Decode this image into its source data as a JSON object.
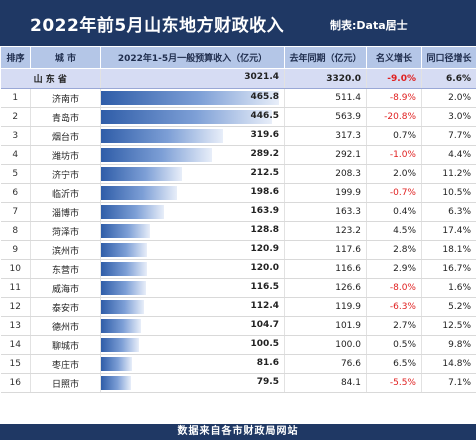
{
  "title": "2022年前5月山东地方财政收入",
  "maker": "制表:Data居士",
  "footer": "数据来自各市财政局网站",
  "headers": {
    "rank": "排序",
    "city": "城 市",
    "revenue": "2022年1-5月一般预算收入（亿元）",
    "last_year": "去年同期（亿元）",
    "nominal_growth": "名义增长",
    "comparable_growth": "同口径增长"
  },
  "total": {
    "name": "山 东 省",
    "revenue": "3021.4",
    "last_year": "3320.0",
    "nominal_growth": "-9.0%",
    "comparable_growth": "6.6%"
  },
  "chart_data": {
    "type": "table",
    "columns": [
      "排序",
      "城 市",
      "2022年1-5月一般预算收入（亿元）",
      "去年同期（亿元）",
      "名义增长",
      "同口径增长"
    ],
    "rows": [
      {
        "rank": "1",
        "city": "济南市",
        "revenue": 465.8,
        "last_year": 511.4,
        "nominal_growth": "-8.9%",
        "comparable_growth": "2.0%"
      },
      {
        "rank": "2",
        "city": "青岛市",
        "revenue": 446.5,
        "last_year": 563.9,
        "nominal_growth": "-20.8%",
        "comparable_growth": "3.0%"
      },
      {
        "rank": "3",
        "city": "烟台市",
        "revenue": 319.6,
        "last_year": 317.3,
        "nominal_growth": "0.7%",
        "comparable_growth": "7.7%"
      },
      {
        "rank": "4",
        "city": "潍坊市",
        "revenue": 289.2,
        "last_year": 292.1,
        "nominal_growth": "-1.0%",
        "comparable_growth": "4.4%"
      },
      {
        "rank": "5",
        "city": "济宁市",
        "revenue": 212.5,
        "last_year": 208.3,
        "nominal_growth": "2.0%",
        "comparable_growth": "11.2%"
      },
      {
        "rank": "6",
        "city": "临沂市",
        "revenue": 198.6,
        "last_year": 199.9,
        "nominal_growth": "-0.7%",
        "comparable_growth": "10.5%"
      },
      {
        "rank": "7",
        "city": "淄博市",
        "revenue": 163.9,
        "last_year": 163.3,
        "nominal_growth": "0.4%",
        "comparable_growth": "6.3%"
      },
      {
        "rank": "8",
        "city": "菏泽市",
        "revenue": 128.8,
        "last_year": 123.2,
        "nominal_growth": "4.5%",
        "comparable_growth": "17.4%"
      },
      {
        "rank": "9",
        "city": "滨州市",
        "revenue": 120.9,
        "last_year": 117.6,
        "nominal_growth": "2.8%",
        "comparable_growth": "18.1%"
      },
      {
        "rank": "10",
        "city": "东营市",
        "revenue": 120.0,
        "last_year": 116.6,
        "nominal_growth": "2.9%",
        "comparable_growth": "16.7%"
      },
      {
        "rank": "11",
        "city": "威海市",
        "revenue": 116.5,
        "last_year": 126.6,
        "nominal_growth": "-8.0%",
        "comparable_growth": "1.6%"
      },
      {
        "rank": "12",
        "city": "泰安市",
        "revenue": 112.4,
        "last_year": 119.9,
        "nominal_growth": "-6.3%",
        "comparable_growth": "5.2%"
      },
      {
        "rank": "13",
        "city": "德州市",
        "revenue": 104.7,
        "last_year": 101.9,
        "nominal_growth": "2.7%",
        "comparable_growth": "12.5%"
      },
      {
        "rank": "14",
        "city": "聊城市",
        "revenue": 100.5,
        "last_year": 100.0,
        "nominal_growth": "0.5%",
        "comparable_growth": "9.8%"
      },
      {
        "rank": "15",
        "city": "枣庄市",
        "revenue": 81.6,
        "last_year": 76.6,
        "nominal_growth": "6.5%",
        "comparable_growth": "14.8%"
      },
      {
        "rank": "16",
        "city": "日照市",
        "revenue": 79.5,
        "last_year": 84.1,
        "nominal_growth": "-5.5%",
        "comparable_growth": "7.1%"
      }
    ],
    "bar_column": "revenue",
    "bar_max": 465.8
  },
  "colors": {
    "header_bg": "#1f3864",
    "column_header_bg": "#b4c6e7",
    "total_row_bg": "#d6dcf3",
    "bar_color": "#2f5da8",
    "negative_color": "#e02020"
  }
}
